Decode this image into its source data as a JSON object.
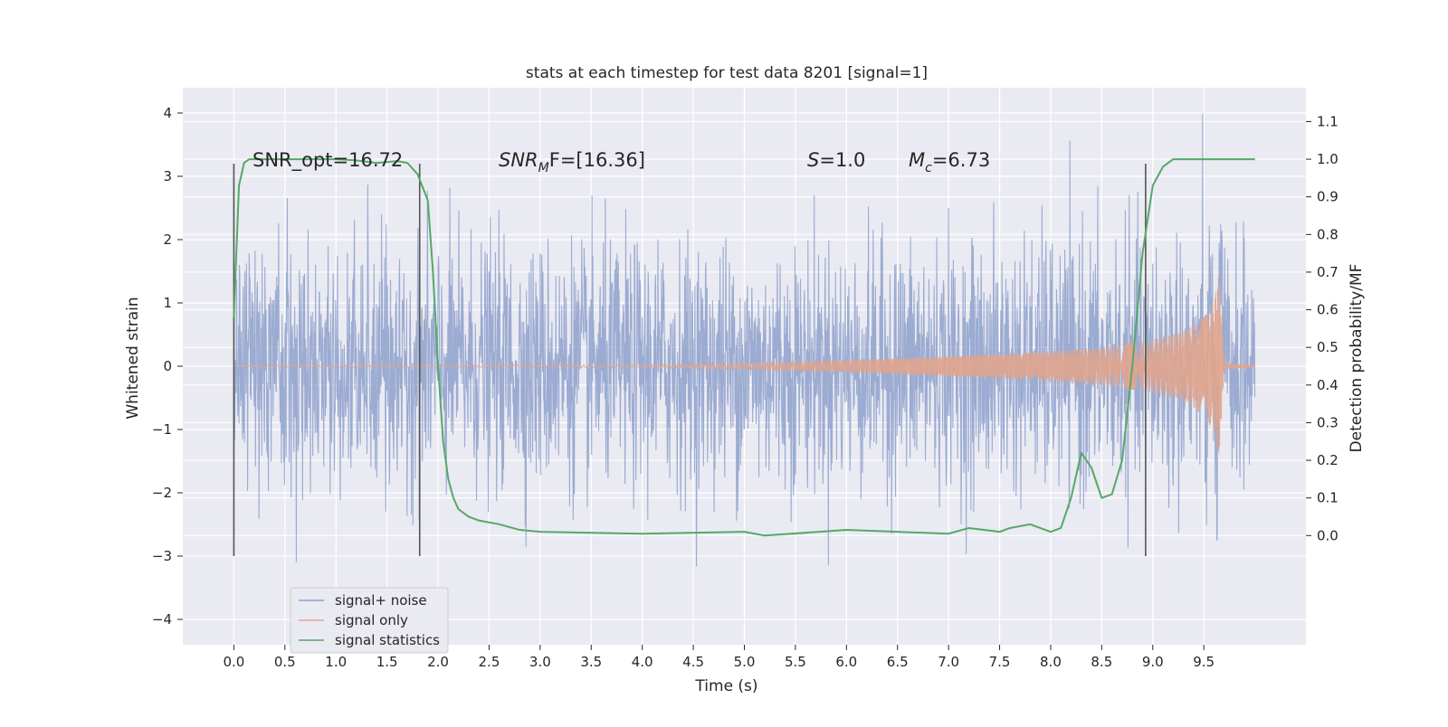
{
  "chart_data": {
    "type": "line",
    "title": "stats at each timestep for test data 8201 [signal=1]",
    "xlabel": "Time (s)",
    "ylabel": "Whitened strain",
    "ylabel_right": "Detection probability/MF",
    "xlim": [
      -0.5,
      10.5
    ],
    "ylim": [
      -4.4,
      4.4
    ],
    "ylim_right": [
      -0.29,
      1.19
    ],
    "xticks": [
      0.0,
      0.5,
      1.0,
      1.5,
      2.0,
      2.5,
      3.0,
      3.5,
      4.0,
      4.5,
      5.0,
      5.5,
      6.0,
      6.5,
      7.0,
      7.5,
      8.0,
      8.5,
      9.0,
      9.5
    ],
    "xtick_labels": [
      "0.0",
      "0.5",
      "1.0",
      "1.5",
      "2.0",
      "2.5",
      "3.0",
      "3.5",
      "4.0",
      "4.5",
      "5.0",
      "5.5",
      "6.0",
      "6.5",
      "7.0",
      "7.5",
      "8.0",
      "8.5",
      "9.0",
      "9.5"
    ],
    "yticks": [
      -4,
      -3,
      -2,
      -1,
      0,
      1,
      2,
      3,
      4
    ],
    "ytick_labels": [
      "−4",
      "−3",
      "−2",
      "−1",
      "0",
      "1",
      "2",
      "3",
      "4"
    ],
    "yticks_right": [
      0.0,
      0.1,
      0.2,
      0.3,
      0.4,
      0.5,
      0.6,
      0.7,
      0.8,
      0.9,
      1.0,
      1.1
    ],
    "ytick_right_labels": [
      "0.0",
      "0.1",
      "0.2",
      "0.3",
      "0.4",
      "0.5",
      "0.6",
      "0.7",
      "0.8",
      "0.9",
      "1.0",
      "1.1"
    ],
    "grid": true,
    "legend_position": "lower-left",
    "background_color": "#eaeaf2",
    "series": [
      {
        "name": "signal+ noise",
        "color": "#8da0cb",
        "kind": "noisy strain, Gaussian-like, roughly -3.7 to 4.1, spanning t=0 to 10",
        "x_range": [
          0.0,
          10.0
        ]
      },
      {
        "name": "signal only",
        "color": "#e0a48d",
        "kind": "chirp waveform, amplitude growing from ~0 at t=5 to ~1.5 at merger t≈9.65, ring-down after",
        "envelope": {
          "t": [
            0.0,
            4.0,
            5.0,
            6.0,
            7.0,
            8.0,
            8.5,
            9.0,
            9.3,
            9.5,
            9.6,
            9.65,
            9.7,
            10.0
          ],
          "amp": [
            0.01,
            0.02,
            0.05,
            0.1,
            0.16,
            0.24,
            0.3,
            0.42,
            0.55,
            0.78,
            1.05,
            1.5,
            0.05,
            0.01
          ]
        }
      },
      {
        "name": "signal statistics",
        "color": "#55a868",
        "axis": "right",
        "x": [
          0.0,
          0.05,
          0.1,
          0.15,
          0.2,
          0.3,
          0.5,
          1.0,
          1.2,
          1.4,
          1.6,
          1.7,
          1.8,
          1.9,
          1.95,
          2.0,
          2.05,
          2.1,
          2.15,
          2.2,
          2.3,
          2.4,
          2.6,
          2.8,
          3.0,
          4.0,
          5.0,
          5.2,
          6.0,
          6.5,
          7.0,
          7.2,
          7.5,
          7.6,
          7.8,
          8.0,
          8.1,
          8.2,
          8.3,
          8.4,
          8.5,
          8.6,
          8.7,
          8.8,
          8.9,
          9.0,
          9.1,
          9.2,
          9.4,
          9.6,
          9.8,
          10.0
        ],
        "y": [
          0.58,
          0.93,
          0.99,
          1.0,
          1.0,
          1.0,
          1.0,
          1.0,
          0.997,
          0.99,
          0.995,
          0.99,
          0.96,
          0.89,
          0.7,
          0.45,
          0.25,
          0.15,
          0.1,
          0.07,
          0.05,
          0.04,
          0.03,
          0.015,
          0.01,
          0.005,
          0.01,
          0.0,
          0.015,
          0.01,
          0.005,
          0.02,
          0.01,
          0.02,
          0.03,
          0.01,
          0.02,
          0.1,
          0.22,
          0.18,
          0.1,
          0.11,
          0.2,
          0.45,
          0.75,
          0.93,
          0.98,
          1.0,
          1.0,
          1.0,
          1.0,
          1.0
        ]
      }
    ],
    "vertical_markers": [
      0.0,
      1.82,
      8.93
    ],
    "vertical_marker_range": [
      -3.0,
      3.2
    ],
    "annotations": {
      "snr_opt": "SNR_opt=16.72",
      "snr_mf_prefix": "SNR",
      "snr_mf_sub": "M",
      "snr_mf_suffix": "F=[16.36]",
      "s_label": "S",
      "s_value": "=1.0",
      "mc_label": "M",
      "mc_sub": "c",
      "mc_value": "=6.73"
    }
  }
}
